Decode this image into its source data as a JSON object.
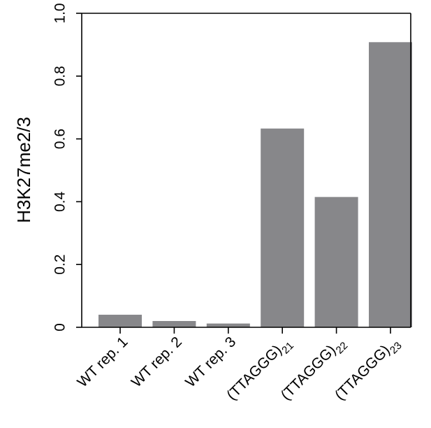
{
  "chart_data": {
    "type": "bar",
    "ylabel": "H3K27me2/3",
    "ylim": [
      0,
      1.0
    ],
    "yticks": [
      {
        "value": 0,
        "label": "0"
      },
      {
        "value": 0.2,
        "label": "0.2"
      },
      {
        "value": 0.4,
        "label": "0.4"
      },
      {
        "value": 0.6,
        "label": "0.6"
      },
      {
        "value": 0.8,
        "label": "0.8"
      },
      {
        "value": 1.0,
        "label": "1.0"
      }
    ],
    "categories": [
      {
        "label": "WT rep. 1",
        "sub": ""
      },
      {
        "label": "WT rep. 2",
        "sub": ""
      },
      {
        "label": "WT rep. 3",
        "sub": ""
      },
      {
        "label": "(TTAGGG)",
        "sub": "21"
      },
      {
        "label": "(TTAGGG)",
        "sub": "22"
      },
      {
        "label": "(TTAGGG)",
        "sub": "23"
      }
    ],
    "values": [
      0.04,
      0.02,
      0.012,
      0.633,
      0.415,
      0.908
    ],
    "bar_color": "#87878a",
    "grid": false
  }
}
